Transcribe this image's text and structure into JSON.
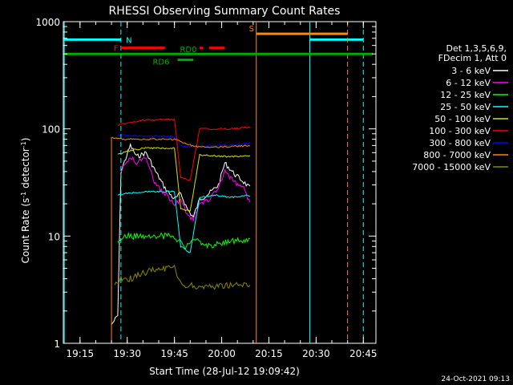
{
  "chart_data": {
    "type": "line",
    "title": "RHESSI Observing Summary Count Rates",
    "xlabel": "Start Time (28-Jul-12 19:09:42)",
    "ylabel_main": "Count Rate (s",
    "ylabel_sup1": "-1",
    "ylabel_mid": " detector",
    "ylabel_sup2": "-1",
    "ylabel_end": ")",
    "footer_date": "24-Oct-2021 09:13",
    "y_scale": "log",
    "ylim": [
      1,
      1000
    ],
    "xlim": [
      "19:09:42",
      "20:49:00"
    ],
    "x_ticks": [
      {
        "label": "19:15",
        "t": "19:15"
      },
      {
        "label": "19:30",
        "t": "19:30"
      },
      {
        "label": "19:45",
        "t": "19:45"
      },
      {
        "label": "20:00",
        "t": "20:00"
      },
      {
        "label": "20:15",
        "t": "20:15"
      },
      {
        "label": "20:30",
        "t": "20:30"
      },
      {
        "label": "20:45",
        "t": "20:45"
      }
    ],
    "y_ticks": [
      {
        "label": "1",
        "v": 1
      },
      {
        "label": "10",
        "v": 10
      },
      {
        "label": "100",
        "v": 100
      },
      {
        "label": "1000",
        "v": 1000
      }
    ],
    "legend": {
      "position": "right",
      "header": [
        "Det 1,3,5,6,9,",
        "FDecim 1, Att 0"
      ]
    },
    "series": [
      {
        "name": "3 - 6 keV",
        "color": "#ffffff",
        "values": [
          [
            "19:25",
            "1.5"
          ],
          [
            "19:27",
            "1.8"
          ],
          [
            "19:28",
            "40"
          ],
          [
            "19:31",
            "70"
          ],
          [
            "19:33",
            "55"
          ],
          [
            "19:36",
            "60"
          ],
          [
            "19:39",
            "40"
          ],
          [
            "19:42",
            "28"
          ],
          [
            "19:45",
            "22"
          ],
          [
            "19:47",
            "25"
          ],
          [
            "19:49",
            "18"
          ],
          [
            "19:51",
            "15"
          ],
          [
            "19:53",
            "22"
          ],
          [
            "19:56",
            "25"
          ],
          [
            "19:59",
            "30"
          ],
          [
            "20:01",
            "48"
          ],
          [
            "20:04",
            "38"
          ],
          [
            "20:07",
            "32"
          ],
          [
            "20:09",
            "28"
          ]
        ]
      },
      {
        "name": "6 - 12 keV",
        "color": "#ff00ff",
        "values": [
          [
            "19:28",
            "40"
          ],
          [
            "19:31",
            "55"
          ],
          [
            "19:33",
            "48"
          ],
          [
            "19:36",
            "55"
          ],
          [
            "19:39",
            "30"
          ],
          [
            "19:42",
            "25"
          ],
          [
            "19:45",
            "20"
          ],
          [
            "19:47",
            "22"
          ],
          [
            "19:49",
            "16"
          ],
          [
            "19:51",
            "14"
          ],
          [
            "19:53",
            "20"
          ],
          [
            "19:56",
            "22"
          ],
          [
            "19:59",
            "28"
          ],
          [
            "20:01",
            "40"
          ],
          [
            "20:04",
            "32"
          ],
          [
            "20:07",
            "28"
          ],
          [
            "20:09",
            "20"
          ]
        ]
      },
      {
        "name": "12 - 25 keV",
        "color": "#00ff00",
        "values": [
          [
            "19:27",
            "9"
          ],
          [
            "19:30",
            "10"
          ],
          [
            "19:35",
            "10"
          ],
          [
            "19:40",
            "10"
          ],
          [
            "19:45",
            "10"
          ],
          [
            "19:48",
            "8"
          ],
          [
            "19:52",
            "9"
          ],
          [
            "19:57",
            "8"
          ],
          [
            "20:02",
            "9"
          ],
          [
            "20:09",
            "9"
          ]
        ]
      },
      {
        "name": "25 - 50 keV",
        "color": "#00ffff",
        "values": [
          [
            "19:27",
            "24"
          ],
          [
            "19:30",
            "25"
          ],
          [
            "19:35",
            "26"
          ],
          [
            "19:40",
            "26"
          ],
          [
            "19:45",
            "26"
          ],
          [
            "19:47",
            "8"
          ],
          [
            "19:50",
            "7"
          ],
          [
            "19:53",
            "23"
          ],
          [
            "19:58",
            "24"
          ],
          [
            "20:03",
            "23"
          ],
          [
            "20:09",
            "24"
          ]
        ]
      },
      {
        "name": "50 - 100 keV",
        "color": "#dddd00",
        "values": [
          [
            "19:27",
            "58"
          ],
          [
            "19:30",
            "62"
          ],
          [
            "19:35",
            "66"
          ],
          [
            "19:40",
            "66"
          ],
          [
            "19:45",
            "66"
          ],
          [
            "19:47",
            "18"
          ],
          [
            "19:50",
            "17"
          ],
          [
            "19:53",
            "57"
          ],
          [
            "19:58",
            "56"
          ],
          [
            "20:03",
            "55"
          ],
          [
            "20:09",
            "56"
          ]
        ]
      },
      {
        "name": "100 - 300 keV",
        "color": "#ff0000",
        "values": [
          [
            "19:27",
            "108"
          ],
          [
            "19:30",
            "114"
          ],
          [
            "19:35",
            "120"
          ],
          [
            "19:40",
            "122"
          ],
          [
            "19:45",
            "122"
          ],
          [
            "19:47",
            "35"
          ],
          [
            "19:50",
            "33"
          ],
          [
            "19:53",
            "100"
          ],
          [
            "19:58",
            "100"
          ],
          [
            "20:03",
            "100"
          ],
          [
            "20:09",
            "104"
          ]
        ]
      },
      {
        "name": "300 - 800 keV",
        "color": "#0000ff",
        "values": [
          [
            "19:27",
            "88"
          ],
          [
            "19:30",
            "87"
          ],
          [
            "19:35",
            "86"
          ],
          [
            "19:40",
            "86"
          ],
          [
            "19:45",
            "85"
          ],
          [
            "19:47",
            "69"
          ],
          [
            "19:50",
            "68"
          ],
          [
            "19:53",
            "69"
          ],
          [
            "19:58",
            "70"
          ],
          [
            "20:03",
            "71"
          ],
          [
            "20:09",
            "73"
          ]
        ]
      },
      {
        "name": "800 - 7000 keV",
        "color": "#ff8800",
        "values": [
          [
            "19:25",
            "1"
          ],
          [
            "19:25",
            "82"
          ],
          [
            "19:30",
            "80"
          ],
          [
            "19:35",
            "80"
          ],
          [
            "19:40",
            "80"
          ],
          [
            "19:45",
            "80"
          ],
          [
            "19:48",
            "74"
          ],
          [
            "19:52",
            "68"
          ],
          [
            "19:57",
            "68"
          ],
          [
            "20:02",
            "68"
          ],
          [
            "20:09",
            "70"
          ]
        ]
      },
      {
        "name": "7000 - 15000 keV",
        "color": "#888800",
        "values": [
          [
            "19:26",
            "3.5"
          ],
          [
            "19:28",
            "4"
          ],
          [
            "19:31",
            "4"
          ],
          [
            "19:35",
            "4.5"
          ],
          [
            "19:40",
            "5"
          ],
          [
            "19:45",
            "5"
          ],
          [
            "19:47",
            "3.5"
          ],
          [
            "19:52",
            "3.4"
          ],
          [
            "19:57",
            "3.4"
          ],
          [
            "20:02",
            "3.5"
          ],
          [
            "20:09",
            "3.5"
          ]
        ]
      }
    ],
    "attenuator_flags": [
      {
        "label": "N",
        "color": "#00ffff",
        "segments": [
          [
            "19:10",
            "19:28"
          ],
          [
            "20:28",
            "20:45"
          ]
        ],
        "level": 680,
        "dashes": [
          "19:28",
          "20:45"
        ],
        "solid": [
          "19:10",
          "20:28"
        ]
      },
      {
        "label": "S",
        "color": "#ff8800",
        "segments": [
          [
            "20:11",
            "20:40"
          ]
        ],
        "level": 770,
        "dashes": [
          "20:40"
        ],
        "solid": [
          "20:11"
        ]
      },
      {
        "label": "F",
        "color": "#ff0000",
        "segments": [
          [
            "19:28",
            "19:42"
          ],
          [
            "19:53",
            "19:54"
          ],
          [
            "19:56",
            "20:01"
          ]
        ],
        "level": 570
      },
      {
        "label": "RD0",
        "color": "#00aa00",
        "segments": [
          [
            "19:10",
            "20:48"
          ]
        ],
        "level": 500
      },
      {
        "label": "RD6",
        "color": "#00aa00",
        "segments": [
          [
            "19:46",
            "19:51"
          ]
        ],
        "level": 440
      }
    ]
  }
}
